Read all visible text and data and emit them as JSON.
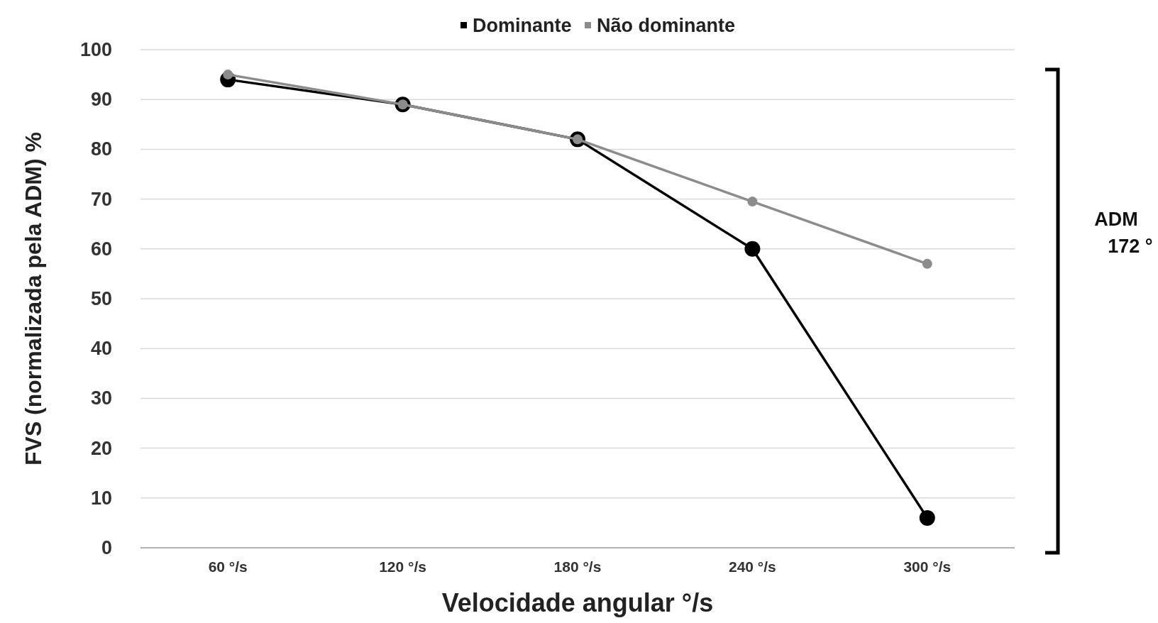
{
  "chart_data": {
    "type": "line",
    "xlabel": "Velocidade angular °/s",
    "ylabel": "FVS (normalizada pela ADM) %",
    "categories": [
      "60 °/s",
      "120 °/s",
      "180 °/s",
      "240 °/s",
      "300 °/s"
    ],
    "series": [
      {
        "name": "Dominante",
        "color": "#000000",
        "values": [
          94,
          89,
          82,
          60,
          6
        ]
      },
      {
        "name": "Não dominante",
        "color": "#8c8c8c",
        "values": [
          95,
          89,
          82,
          69.5,
          57
        ]
      }
    ],
    "ylim": [
      0,
      100
    ],
    "yticks": [
      0,
      10,
      20,
      30,
      40,
      50,
      60,
      70,
      80,
      90,
      100
    ],
    "grid": "y",
    "legend": "top",
    "marker": "circle",
    "line_style": "solid",
    "annotations": [
      "ADM\n172 °"
    ]
  }
}
